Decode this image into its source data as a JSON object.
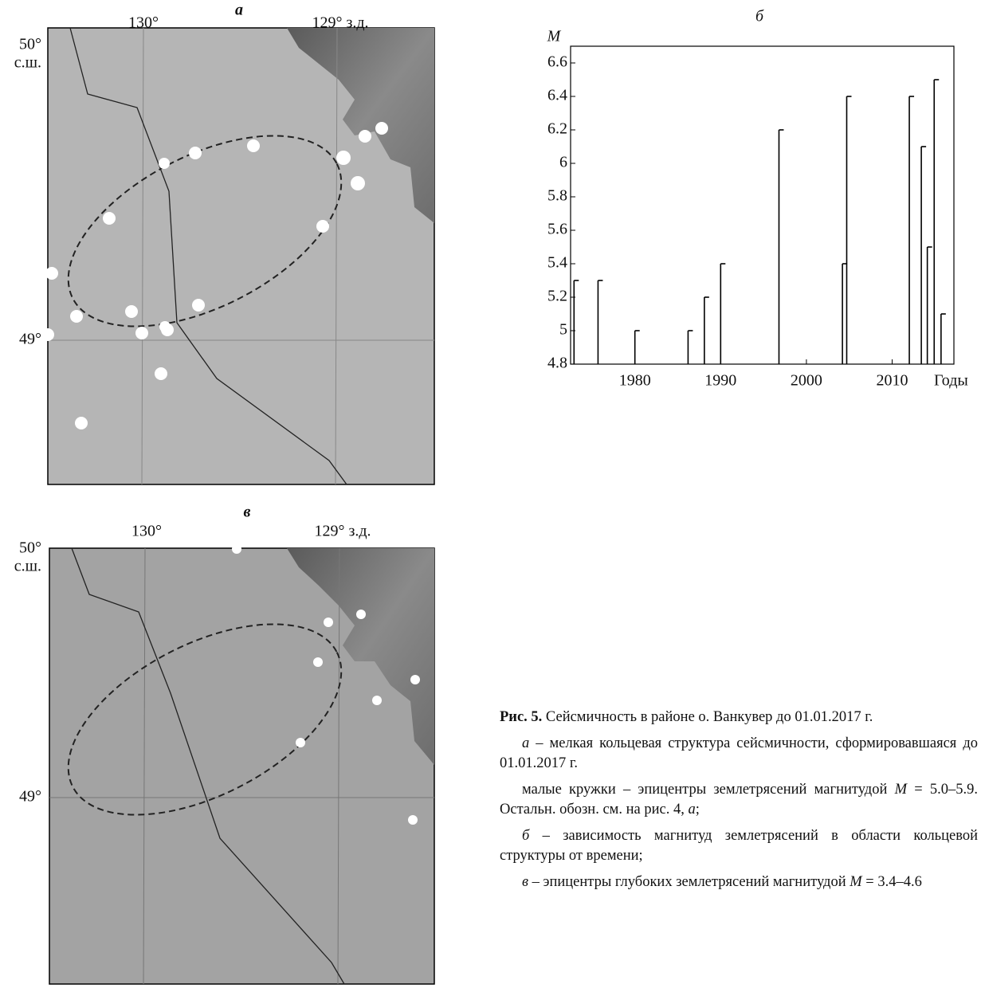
{
  "panels": [
    {
      "letter": "а",
      "lon_labels": [
        "130°",
        "129° з.д."
      ],
      "lat_labels": [
        "50°",
        "с.ш.",
        "49°"
      ]
    },
    {
      "letter": "в",
      "lon_labels": [
        "130°",
        "129° з.д."
      ],
      "lat_labels": [
        "50°",
        "с.ш.",
        "49°"
      ]
    }
  ],
  "chart_data": {
    "type": "stem",
    "title": "б",
    "y_label": "M",
    "x_label": "Годы",
    "x": [
      1972.9,
      1975.7,
      1980.0,
      1986.2,
      1988.1,
      1990.0,
      1996.8,
      2004.2,
      2004.7,
      2012.0,
      2013.4,
      2014.1,
      2014.9,
      2015.7
    ],
    "values": [
      5.3,
      5.3,
      5.0,
      5.0,
      5.2,
      5.4,
      6.2,
      5.4,
      6.4,
      6.4,
      6.1,
      5.5,
      6.5,
      5.1
    ],
    "color": "#000000",
    "xlim": [
      1972.5,
      2017.2
    ],
    "xticks": [
      1980,
      1990,
      2000,
      2010
    ],
    "ylim": [
      4.8,
      6.7
    ],
    "yticks": [
      4.8,
      5,
      5.2,
      5.4,
      5.6,
      5.8,
      6,
      6.2,
      6.4,
      6.6
    ]
  },
  "caption": [
    [
      "Рис. 5.",
      " Сейсмичность в районе о. Ванкувер до 01.01.2017 г."
    ],
    [
      "а",
      " – мелкая кольцевая структура сейсмичности, сформировавшаяся до 01.01.2017 г."
    ],
    [
      "малые кружки – эпицентры землетрясений магнитудой ",
      "M",
      " = 5.0–5.9. Остальн. обозн. см. на рис. 4, ",
      "а",
      ";"
    ],
    [
      "б",
      " – зависимость магнитуд землетрясений в области кольцевой структуры от времени;"
    ],
    [
      "в",
      " – эпицентры глубоких землетрясений магнитудой ",
      "M",
      " = 3.4–4.6"
    ]
  ]
}
